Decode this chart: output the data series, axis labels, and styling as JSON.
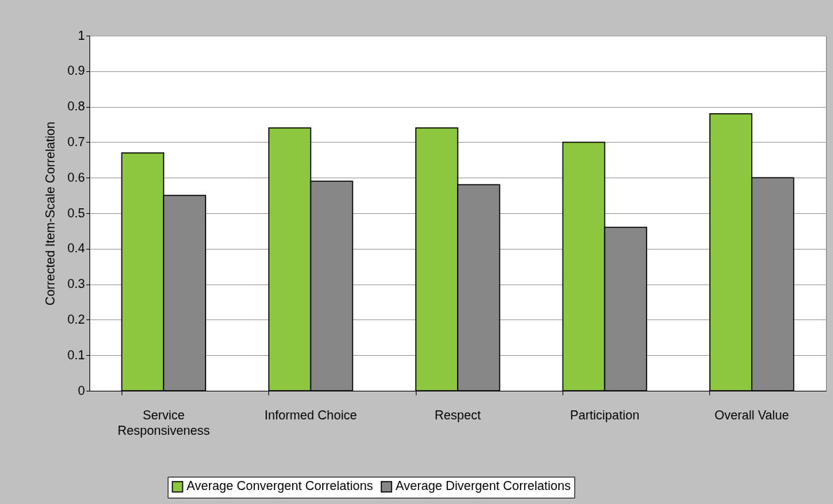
{
  "chart_data": {
    "type": "bar",
    "ylabel": "Corrected Item-Scale Correlation",
    "categories": [
      "Service Responsiveness",
      "Informed Choice",
      "Respect",
      "Participation",
      "Overall Value"
    ],
    "series": [
      {
        "name": "Average Convergent Correlations",
        "color": "#8dc63f",
        "values": [
          0.67,
          0.74,
          0.74,
          0.7,
          0.78
        ]
      },
      {
        "name": "Average Divergent Correlations",
        "color": "#878787",
        "values": [
          0.55,
          0.59,
          0.58,
          0.46,
          0.6
        ]
      }
    ],
    "ylim": [
      0,
      1
    ],
    "yticks": [
      0,
      0.1,
      0.2,
      0.3,
      0.4,
      0.5,
      0.6,
      0.7,
      0.8,
      0.9,
      1
    ],
    "grid": "y",
    "legend": "bottom"
  }
}
